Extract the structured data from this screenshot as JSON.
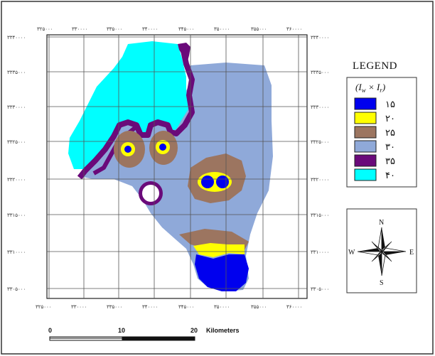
{
  "legend": {
    "title": "LEGEND",
    "subtitle": "(I",
    "subtitle_sub1": "w",
    "subtitle_mid": " × I",
    "subtitle_sub2": "r",
    "subtitle_end": ")",
    "classes": [
      {
        "label": "۱۵",
        "color": "#0000ee"
      },
      {
        "label": "۲۰",
        "color": "#ffff00"
      },
      {
        "label": "۲۵",
        "color": "#9c7560"
      },
      {
        "label": "۳۰",
        "color": "#8fa9d9"
      },
      {
        "label": "۳۵",
        "color": "#6a0a7a"
      },
      {
        "label": "۴۰",
        "color": "#00ffff"
      }
    ]
  },
  "axes": {
    "x_ticks": [
      "۳۲۵۰۰۰",
      "۳۳۰۰۰۰",
      "۳۳۵۰۰۰",
      "۳۴۰۰۰۰",
      "۳۴۵۰۰۰",
      "۳۵۰۰۰۰",
      "۳۵۵۰۰۰",
      "۳۶۰۰۰۰"
    ],
    "y_ticks": [
      "۳۳۴۰۰۰۰",
      "۳۳۳۵۰۰۰",
      "۳۳۳۰۰۰۰",
      "۳۳۲۵۰۰۰",
      "۳۳۲۰۰۰۰",
      "۳۳۱۵۰۰۰",
      "۳۳۱۰۰۰۰",
      "۳۳۰۵۰۰۰"
    ]
  },
  "scale_bar": {
    "labels": [
      "0",
      "10",
      "20"
    ],
    "unit": "Kilometers"
  },
  "compass": {
    "n": "N",
    "s": "S",
    "e": "E",
    "w": "W"
  }
}
